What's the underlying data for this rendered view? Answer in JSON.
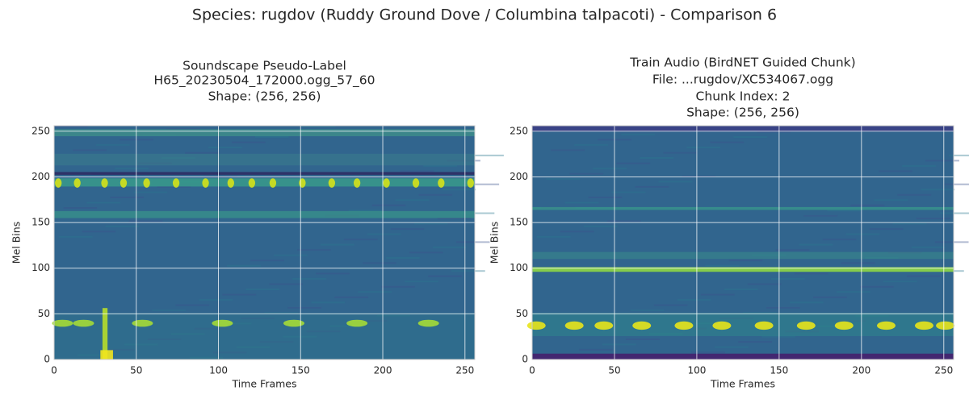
{
  "title": "Species: rugdov (Ruddy Ground Dove / Columbina talpacoti) - Comparison 6",
  "chart_data": [
    {
      "type": "heatmap",
      "title": [
        "Soundscape Pseudo-Label",
        "H65_20230504_172000.ogg_57_60",
        "Shape: (256, 256)"
      ],
      "xlabel": "Time Frames",
      "ylabel": "Mel Bins",
      "xlim": [
        0,
        256
      ],
      "ylim": [
        0,
        256
      ],
      "xticks": [
        0,
        50,
        100,
        150,
        200,
        250
      ],
      "yticks": [
        0,
        50,
        100,
        150,
        200,
        250
      ],
      "grid": true,
      "colormap": "viridis"
    },
    {
      "type": "heatmap",
      "title": [
        "Train Audio (BirdNET Guided Chunk)",
        "File: ...rugdov/XC534067.ogg",
        "Chunk Index: 2",
        "Shape: (256, 256)"
      ],
      "xlabel": "Time Frames",
      "ylabel": "Mel Bins",
      "xlim": [
        0,
        256
      ],
      "ylim": [
        0,
        256
      ],
      "xticks": [
        0,
        50,
        100,
        150,
        200,
        250
      ],
      "yticks": [
        0,
        50,
        100,
        150,
        200,
        250
      ],
      "grid": true,
      "colormap": "viridis"
    }
  ]
}
